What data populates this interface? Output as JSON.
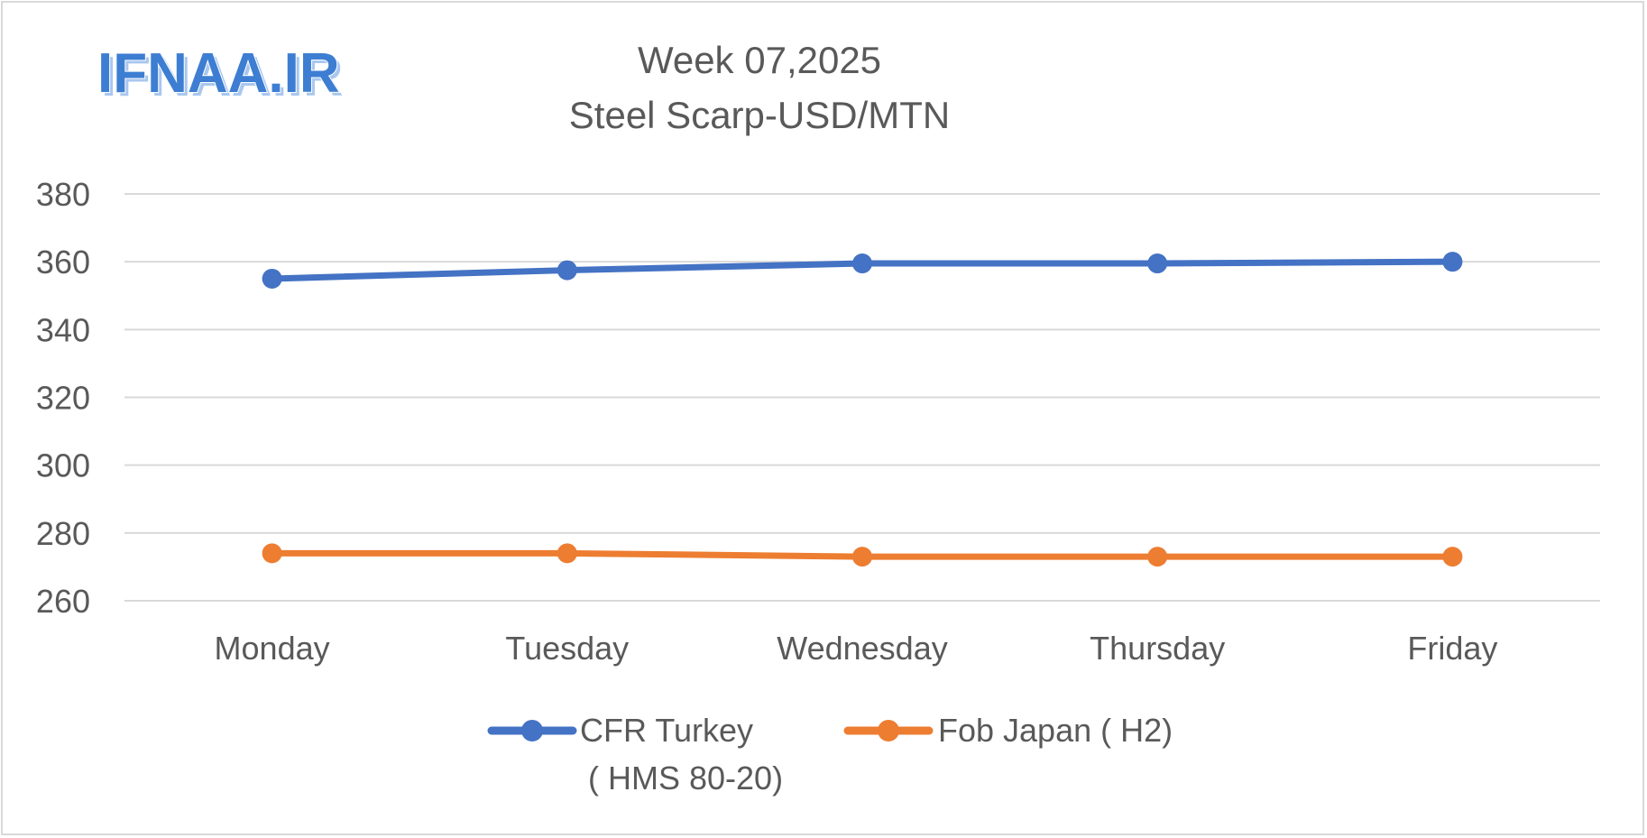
{
  "logo": {
    "text": "IFNAA.IR"
  },
  "chart_data": {
    "type": "line",
    "title": "Week 07,2025",
    "subtitle": "Steel Scarp-USD/MTN",
    "xlabel": "",
    "ylabel": "",
    "categories": [
      "Monday",
      "Tuesday",
      "Wednesday",
      "Thursday",
      "Friday"
    ],
    "ylim": [
      260,
      380
    ],
    "yticks": [
      260,
      280,
      300,
      320,
      340,
      360,
      380
    ],
    "grid": true,
    "legend_position": "bottom",
    "series": [
      {
        "name": "CFR Turkey",
        "name_line2": "( HMS 80-20)",
        "color": "#4472c4",
        "values": [
          355,
          357.5,
          359.5,
          359.5,
          360
        ]
      },
      {
        "name": "Fob Japan ( H2)",
        "color": "#ed7d31",
        "values": [
          274,
          274,
          273,
          273,
          273
        ]
      }
    ]
  }
}
